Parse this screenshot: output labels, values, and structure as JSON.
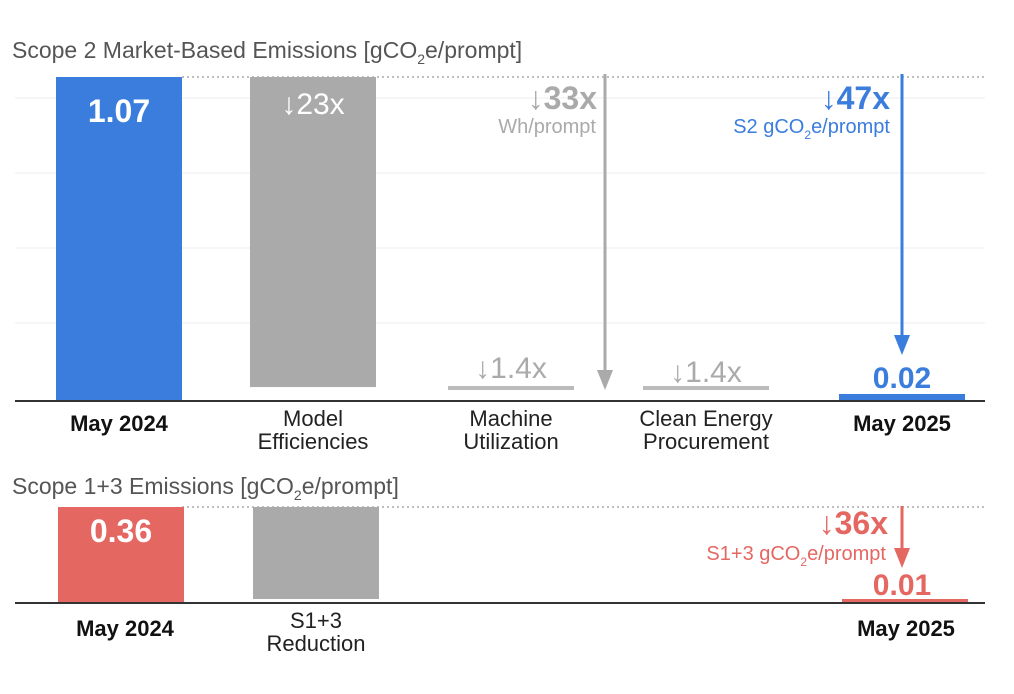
{
  "colors": {
    "blue": "#3b7ddd",
    "red": "#e56762",
    "gray": "#aaaaaa",
    "lightgray": "#bbbbbb",
    "axis": "#333333",
    "grid": "#eeeeee"
  },
  "chart_data": [
    {
      "type": "bar",
      "subtype": "waterfall",
      "title": "Scope 2 Market-Based Emissions [gCO2e/prompt]",
      "title_parts": [
        "Scope 2 Market-Based Emissions [gCO",
        "2",
        "e/prompt]"
      ],
      "unit": "gCO2e/prompt",
      "ylim": [
        0,
        1.07
      ],
      "categories": [
        {
          "label": [
            "May 2024"
          ],
          "bold": true
        },
        {
          "label": [
            "Model",
            "Efficiencies"
          ],
          "bold": false
        },
        {
          "label": [
            "Machine",
            "Utilization"
          ],
          "bold": false
        },
        {
          "label": [
            "Clean Energy",
            "Procurement"
          ],
          "bold": false
        },
        {
          "label": [
            "May 2025"
          ],
          "bold": true
        }
      ],
      "bars": [
        {
          "kind": "total",
          "value": 1.07,
          "from": 0,
          "to": 1.07,
          "color": "blue",
          "label": "1.07"
        },
        {
          "kind": "reduction",
          "from": 1.07,
          "to": 0.046,
          "color": "gray",
          "factor_label": "↓23x"
        },
        {
          "kind": "reduction",
          "from": 0.046,
          "to": 0.033,
          "color": "lightgray",
          "factor_label": "↓1.4x"
        },
        {
          "kind": "reduction",
          "from": 0.033,
          "to": 0.02,
          "color": "lightgray",
          "factor_label": "↓1.4x"
        },
        {
          "kind": "total",
          "value": 0.02,
          "from": 0,
          "to": 0.02,
          "color": "blue",
          "label": "0.02"
        }
      ],
      "annotations": [
        {
          "factor": "↓33x",
          "text_parts": [
            "Wh/prompt"
          ],
          "color": "lightgray"
        },
        {
          "factor": "↓47x",
          "text_parts": [
            "S2 gCO",
            "2",
            "e/prompt"
          ],
          "color": "blue"
        }
      ]
    },
    {
      "type": "bar",
      "subtype": "waterfall",
      "title": "Scope 1+3 Emissions [gCO2e/prompt]",
      "title_parts": [
        "Scope 1+3 Emissions [gCO",
        "2",
        "e/prompt]"
      ],
      "unit": "gCO2e/prompt",
      "ylim": [
        0,
        0.36
      ],
      "categories": [
        {
          "label": [
            "May 2024"
          ],
          "bold": true
        },
        {
          "label": [
            "S1+3",
            "Reduction"
          ],
          "bold": false
        },
        {
          "label": [
            "May 2025"
          ],
          "bold": true
        }
      ],
      "bars": [
        {
          "kind": "total",
          "value": 0.36,
          "from": 0,
          "to": 0.36,
          "color": "red",
          "label": "0.36"
        },
        {
          "kind": "reduction",
          "from": 0.36,
          "to": 0.01,
          "color": "gray",
          "factor_label": ""
        },
        {
          "kind": "total",
          "value": 0.01,
          "from": 0,
          "to": 0.01,
          "color": "red",
          "label": "0.01"
        }
      ],
      "annotations": [
        {
          "factor": "↓36x",
          "text_parts": [
            "S1+3 gCO",
            "2",
            "e/prompt"
          ],
          "color": "red"
        }
      ]
    }
  ]
}
